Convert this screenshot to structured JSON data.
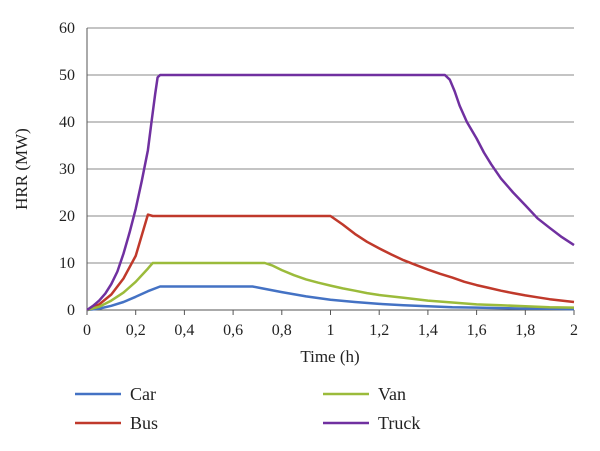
{
  "chart_data": {
    "type": "line",
    "xlabel": "Time (h)",
    "ylabel": "HRR (MW)",
    "xlim": [
      0,
      2
    ],
    "ylim": [
      0,
      60
    ],
    "x_ticks": [
      "0",
      "0,2",
      "0,4",
      "0,6",
      "0,8",
      "1",
      "1,2",
      "1,4",
      "1,6",
      "1,8",
      "2"
    ],
    "y_ticks": [
      "0",
      "10",
      "20",
      "30",
      "40",
      "50",
      "60"
    ],
    "grid": "horizontal",
    "legend_placement": "bottom",
    "series": [
      {
        "name": "Car",
        "color": "#4472C4",
        "points": [
          [
            0,
            0
          ],
          [
            0.05,
            0.3
          ],
          [
            0.1,
            0.9
          ],
          [
            0.15,
            1.7
          ],
          [
            0.2,
            2.8
          ],
          [
            0.25,
            4.0
          ],
          [
            0.3,
            5
          ],
          [
            0.5,
            5
          ],
          [
            0.68,
            5
          ],
          [
            0.72,
            4.6
          ],
          [
            0.8,
            3.8
          ],
          [
            0.9,
            2.9
          ],
          [
            1.0,
            2.2
          ],
          [
            1.1,
            1.7
          ],
          [
            1.2,
            1.3
          ],
          [
            1.3,
            1.0
          ],
          [
            1.4,
            0.8
          ],
          [
            1.5,
            0.6
          ],
          [
            1.6,
            0.5
          ],
          [
            1.7,
            0.4
          ],
          [
            1.8,
            0.3
          ],
          [
            1.9,
            0.25
          ],
          [
            2.0,
            0.2
          ]
        ]
      },
      {
        "name": "Bus",
        "color": "#C0392B",
        "points": [
          [
            0,
            0
          ],
          [
            0.05,
            1.2
          ],
          [
            0.1,
            3.3
          ],
          [
            0.15,
            6.7
          ],
          [
            0.2,
            11.5
          ],
          [
            0.25,
            20.3
          ],
          [
            0.27,
            20
          ],
          [
            0.6,
            20
          ],
          [
            1.0,
            20
          ],
          [
            1.05,
            18.2
          ],
          [
            1.1,
            16.2
          ],
          [
            1.15,
            14.5
          ],
          [
            1.2,
            13.1
          ],
          [
            1.25,
            11.8
          ],
          [
            1.3,
            10.6
          ],
          [
            1.35,
            9.6
          ],
          [
            1.4,
            8.6
          ],
          [
            1.45,
            7.7
          ],
          [
            1.5,
            6.9
          ],
          [
            1.55,
            6.0
          ],
          [
            1.6,
            5.3
          ],
          [
            1.65,
            4.7
          ],
          [
            1.7,
            4.1
          ],
          [
            1.75,
            3.6
          ],
          [
            1.8,
            3.1
          ],
          [
            1.85,
            2.7
          ],
          [
            1.9,
            2.3
          ],
          [
            1.95,
            2.0
          ],
          [
            2.0,
            1.7
          ]
        ]
      },
      {
        "name": "Van",
        "color": "#9BBB3B",
        "points": [
          [
            0,
            0
          ],
          [
            0.05,
            0.7
          ],
          [
            0.1,
            2.0
          ],
          [
            0.15,
            3.7
          ],
          [
            0.2,
            6.0
          ],
          [
            0.25,
            8.8
          ],
          [
            0.27,
            10
          ],
          [
            0.5,
            10
          ],
          [
            0.73,
            10
          ],
          [
            0.76,
            9.5
          ],
          [
            0.8,
            8.5
          ],
          [
            0.85,
            7.4
          ],
          [
            0.9,
            6.5
          ],
          [
            0.95,
            5.8
          ],
          [
            1.0,
            5.2
          ],
          [
            1.05,
            4.6
          ],
          [
            1.1,
            4.1
          ],
          [
            1.15,
            3.6
          ],
          [
            1.2,
            3.2
          ],
          [
            1.3,
            2.6
          ],
          [
            1.4,
            2.0
          ],
          [
            1.5,
            1.6
          ],
          [
            1.6,
            1.2
          ],
          [
            1.7,
            1.0
          ],
          [
            1.8,
            0.8
          ],
          [
            1.9,
            0.6
          ],
          [
            2.0,
            0.5
          ]
        ]
      },
      {
        "name": "Truck",
        "color": "#7030A0",
        "points": [
          [
            0,
            0
          ],
          [
            0.025,
            0.9
          ],
          [
            0.05,
            2.0
          ],
          [
            0.075,
            3.5
          ],
          [
            0.1,
            5.5
          ],
          [
            0.125,
            8.2
          ],
          [
            0.15,
            12.0
          ],
          [
            0.175,
            16.5
          ],
          [
            0.2,
            21.5
          ],
          [
            0.225,
            27.5
          ],
          [
            0.25,
            34.0
          ],
          [
            0.265,
            40.0
          ],
          [
            0.28,
            46.0
          ],
          [
            0.29,
            49.5
          ],
          [
            0.3,
            50
          ],
          [
            0.8,
            50
          ],
          [
            1.47,
            50
          ],
          [
            1.49,
            49.0
          ],
          [
            1.51,
            46.5
          ],
          [
            1.53,
            43.5
          ],
          [
            1.56,
            40.0
          ],
          [
            1.6,
            36.5
          ],
          [
            1.63,
            33.5
          ],
          [
            1.66,
            31.0
          ],
          [
            1.7,
            28.0
          ],
          [
            1.75,
            25.0
          ],
          [
            1.8,
            22.3
          ],
          [
            1.85,
            19.5
          ],
          [
            1.9,
            17.5
          ],
          [
            1.95,
            15.5
          ],
          [
            2.0,
            13.8
          ]
        ]
      }
    ]
  }
}
